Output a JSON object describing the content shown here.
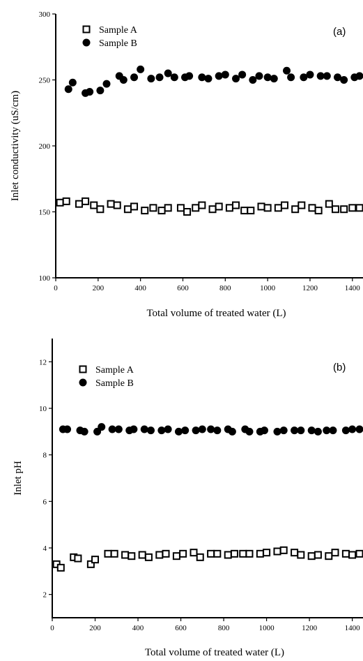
{
  "chart_data": [
    {
      "type": "scatter",
      "panel_tag": "(a)",
      "xlabel": "Total volume of treated water (L)",
      "ylabel": "Inlet conductivity (uS/cm)",
      "xlim": [
        0,
        1450
      ],
      "ylim": [
        100,
        300
      ],
      "xticks": [
        0,
        200,
        400,
        600,
        800,
        1000,
        1200,
        1400
      ],
      "yticks": [
        100,
        150,
        200,
        250,
        300
      ],
      "grid": false,
      "legend_position": "top-left",
      "series": [
        {
          "name": "Sample A",
          "marker": "open-square",
          "x": [
            20,
            50,
            110,
            140,
            180,
            210,
            260,
            290,
            340,
            370,
            420,
            460,
            500,
            530,
            590,
            620,
            660,
            690,
            740,
            770,
            820,
            850,
            890,
            920,
            970,
            1000,
            1050,
            1080,
            1130,
            1160,
            1210,
            1240,
            1290,
            1320,
            1360,
            1400,
            1450
          ],
          "y": [
            157,
            158,
            156,
            158,
            155,
            152,
            156,
            155,
            152,
            154,
            151,
            153,
            151,
            153,
            153,
            150,
            153,
            155,
            152,
            154,
            153,
            155,
            151,
            151,
            154,
            153,
            153,
            155,
            152,
            155,
            153,
            151,
            156,
            152,
            152,
            153,
            153
          ]
        },
        {
          "name": "Sample B",
          "marker": "filled-circle",
          "x": [
            60,
            80,
            140,
            160,
            210,
            240,
            300,
            320,
            370,
            400,
            450,
            490,
            530,
            560,
            610,
            630,
            690,
            720,
            770,
            800,
            850,
            880,
            930,
            960,
            1000,
            1030,
            1090,
            1110,
            1170,
            1200,
            1250,
            1280,
            1330,
            1360,
            1410,
            1440
          ],
          "y": [
            243,
            248,
            240,
            241,
            242,
            247,
            253,
            250,
            252,
            258,
            251,
            252,
            255,
            252,
            252,
            253,
            252,
            251,
            253,
            254,
            251,
            254,
            250,
            253,
            252,
            251,
            257,
            252,
            252,
            254,
            253,
            253,
            252,
            250,
            252,
            253
          ]
        }
      ]
    },
    {
      "type": "scatter",
      "panel_tag": "(b)",
      "xlabel": "Total volume of treated water (L)",
      "ylabel": "Inlet pH",
      "xlim": [
        0,
        1450
      ],
      "ylim": [
        1,
        13
      ],
      "xticks": [
        0,
        200,
        400,
        600,
        800,
        1000,
        1200,
        1400
      ],
      "yticks": [
        2,
        4,
        6,
        8,
        10,
        12
      ],
      "grid": false,
      "legend_position": "top-left",
      "series": [
        {
          "name": "Sample A",
          "marker": "open-square",
          "x": [
            20,
            40,
            100,
            120,
            180,
            200,
            260,
            290,
            340,
            370,
            420,
            450,
            500,
            530,
            580,
            610,
            660,
            690,
            740,
            770,
            820,
            850,
            890,
            920,
            970,
            1000,
            1050,
            1080,
            1130,
            1160,
            1210,
            1240,
            1290,
            1320,
            1370,
            1400,
            1450
          ],
          "y": [
            3.3,
            3.15,
            3.6,
            3.55,
            3.3,
            3.5,
            3.75,
            3.75,
            3.7,
            3.65,
            3.7,
            3.6,
            3.7,
            3.75,
            3.65,
            3.75,
            3.8,
            3.6,
            3.75,
            3.75,
            3.7,
            3.75,
            3.75,
            3.75,
            3.75,
            3.8,
            3.85,
            3.9,
            3.8,
            3.7,
            3.65,
            3.7,
            3.65,
            3.8,
            3.75,
            3.7,
            3.75
          ]
        },
        {
          "name": "Sample B",
          "marker": "filled-circle",
          "x": [
            50,
            70,
            130,
            150,
            210,
            230,
            280,
            310,
            360,
            380,
            430,
            460,
            510,
            540,
            590,
            620,
            670,
            700,
            740,
            770,
            820,
            840,
            900,
            920,
            970,
            990,
            1050,
            1080,
            1130,
            1160,
            1210,
            1240,
            1280,
            1310,
            1370,
            1400,
            1440
          ],
          "y": [
            9.1,
            9.1,
            9.05,
            9.0,
            9.0,
            9.2,
            9.1,
            9.1,
            9.05,
            9.1,
            9.1,
            9.05,
            9.05,
            9.1,
            9.0,
            9.05,
            9.05,
            9.1,
            9.1,
            9.05,
            9.1,
            9.0,
            9.1,
            9.0,
            9.0,
            9.05,
            9.0,
            9.05,
            9.05,
            9.05,
            9.05,
            9.0,
            9.05,
            9.05,
            9.05,
            9.1,
            9.1
          ]
        }
      ]
    }
  ]
}
